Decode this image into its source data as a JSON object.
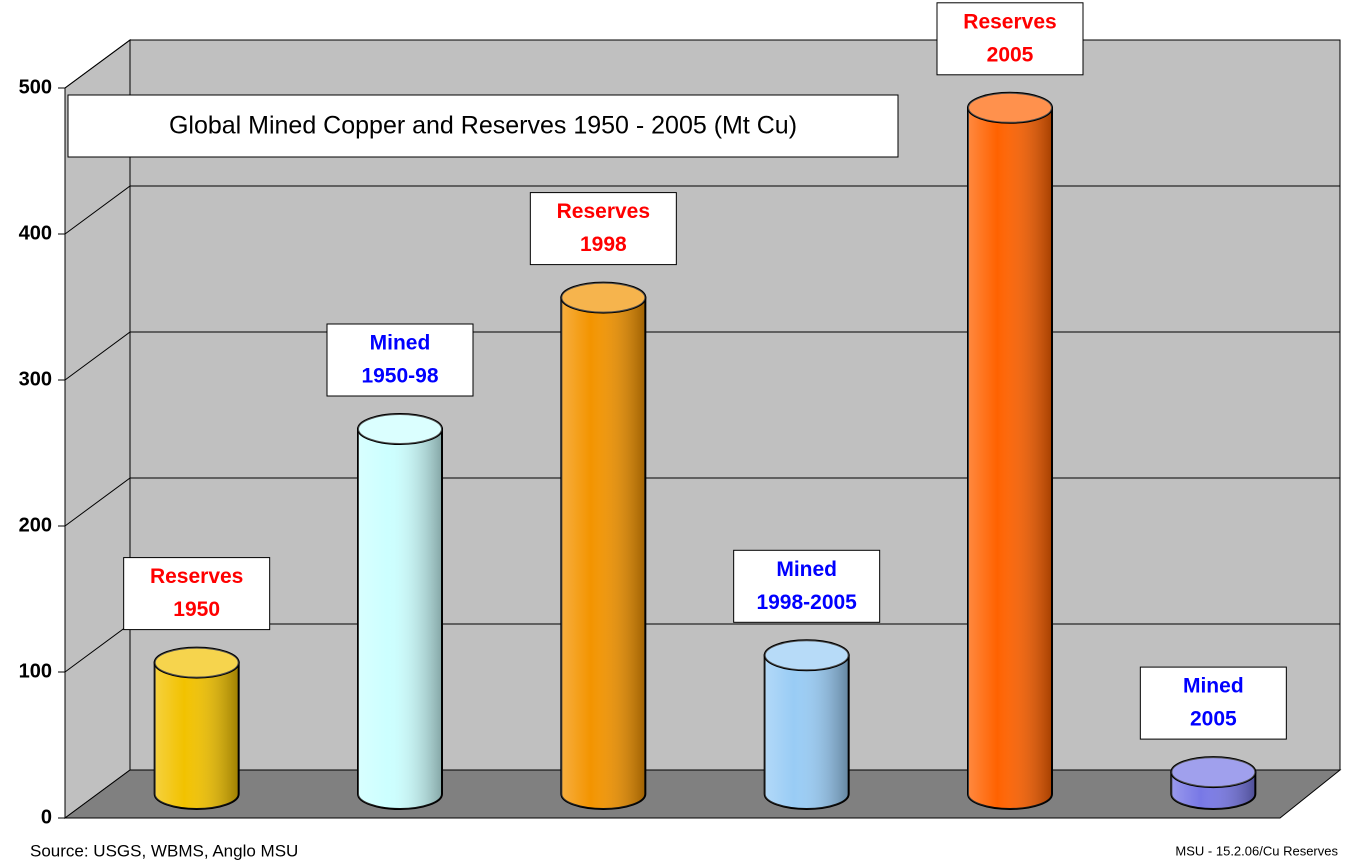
{
  "chart_data": {
    "type": "bar",
    "title": "Global Mined Copper and Reserves 1950 - 2005 (Mt Cu)",
    "categories": [
      [
        "Reserves",
        "1950"
      ],
      [
        "Mined",
        "1950-98"
      ],
      [
        "Reserves",
        "1998"
      ],
      [
        "Mined",
        "1998-2005"
      ],
      [
        "Reserves",
        "2005"
      ],
      [
        "Mined",
        "2005"
      ]
    ],
    "values": [
      90,
      250,
      340,
      95,
      470,
      15
    ],
    "colors": [
      "#f2c200",
      "#ccffff",
      "#f39400",
      "#99ccf5",
      "#ff6200",
      "#7878e6"
    ],
    "label_colors": [
      "#ff0000",
      "#0000ff",
      "#ff0000",
      "#0000ff",
      "#ff0000",
      "#0000ff"
    ],
    "ylim": [
      0,
      500
    ],
    "yticks": [
      0,
      100,
      200,
      300,
      400,
      500
    ],
    "grid": true,
    "source": "Source: USGS, WBMS, Anglo MSU",
    "footer": "MSU - 15.2.06/Cu Reserves"
  }
}
